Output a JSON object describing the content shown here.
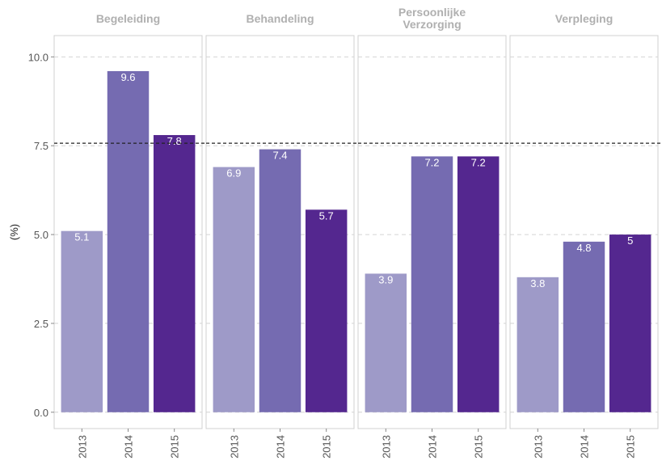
{
  "chart_data": [
    {
      "type": "bar",
      "title": "Begeleiding",
      "ylabel": "(%)",
      "categories": [
        "2013",
        "2014",
        "2015"
      ],
      "values": [
        5.1,
        9.6,
        7.8
      ],
      "colors": [
        "#9e9ac8",
        "#756bb1",
        "#54278f"
      ],
      "ylim": [
        -0.46,
        10.6
      ],
      "yticks": [
        {
          "value": 0,
          "label": "0.0"
        },
        2.5,
        {
          "value": 5,
          "label": "5.0"
        },
        7.5,
        {
          "value": 10,
          "label": "10.0"
        }
      ],
      "hline": 7.57,
      "grid": true
    },
    {
      "type": "bar",
      "title": "Behandeling",
      "categories": [
        "2013",
        "2014",
        "2015"
      ],
      "values": [
        6.9,
        7.4,
        5.7
      ],
      "colors": [
        "#9e9ac8",
        "#756bb1",
        "#54278f"
      ],
      "ylim": [
        -0.46,
        10.6
      ],
      "yticks": [
        {
          "value": 0,
          "label": "0.0"
        },
        2.5,
        {
          "value": 5,
          "label": "5.0"
        },
        7.5,
        {
          "value": 10,
          "label": "10.0"
        }
      ],
      "hline": 7.57,
      "grid": true
    },
    {
      "type": "bar",
      "title": "Persoonlijke Verzorging",
      "categories": [
        "2013",
        "2014",
        "2015"
      ],
      "values": [
        3.9,
        7.2,
        7.2
      ],
      "colors": [
        "#9e9ac8",
        "#756bb1",
        "#54278f"
      ],
      "ylim": [
        -0.46,
        10.6
      ],
      "yticks": [
        {
          "value": 0,
          "label": "0.0"
        },
        2.5,
        {
          "value": 5,
          "label": "5.0"
        },
        7.5,
        {
          "value": 10,
          "label": "10.0"
        }
      ],
      "hline": 7.57,
      "grid": true
    },
    {
      "type": "bar",
      "title": "Verpleging",
      "categories": [
        "2013",
        "2014",
        "2015"
      ],
      "values": [
        3.8,
        4.8,
        5
      ],
      "colors": [
        "#9e9ac8",
        "#756bb1",
        "#54278f"
      ],
      "ylim": [
        -0.46,
        10.6
      ],
      "yticks": [
        {
          "value": 0,
          "label": "0.0"
        },
        2.5,
        {
          "value": 5,
          "label": "5.0"
        },
        7.5,
        {
          "value": 10,
          "label": "10.0"
        }
      ],
      "hline": 7.57,
      "grid": true
    }
  ]
}
